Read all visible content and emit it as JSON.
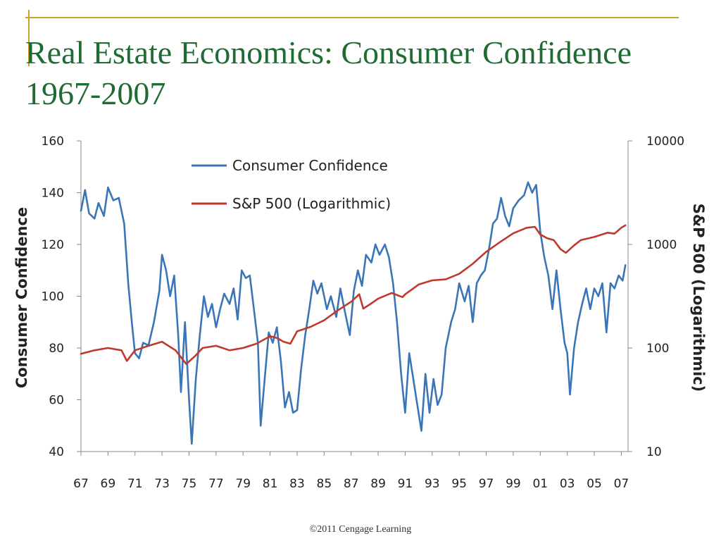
{
  "slide": {
    "title": "Real Estate Economics: Consumer Confidence 1967-2007",
    "footer": "©2011 Cengage Learning",
    "title_color": "#1f6b34",
    "accent_color": "#c9a227"
  },
  "chart_data": {
    "type": "line",
    "ylabel": "Consumer Confidence",
    "y2label": "S&P 500 (Logarithmic)",
    "ylim": [
      40,
      160
    ],
    "yticks": [
      40,
      60,
      80,
      100,
      120,
      140,
      160
    ],
    "y2lim": [
      10,
      10000
    ],
    "y2scale": "log",
    "y2ticks": [
      10,
      100,
      1000,
      10000
    ],
    "xlim": [
      1967,
      2007.5
    ],
    "xticks": [
      1967,
      1969,
      1971,
      1973,
      1975,
      1977,
      1979,
      1981,
      1983,
      1985,
      1987,
      1989,
      1991,
      1993,
      1995,
      1997,
      1999,
      2001,
      2003,
      2005,
      2007
    ],
    "xticklabels": [
      "67",
      "69",
      "71",
      "73",
      "75",
      "77",
      "79",
      "81",
      "83",
      "85",
      "87",
      "89",
      "91",
      "93",
      "95",
      "97",
      "99",
      "01",
      "03",
      "05",
      "07"
    ],
    "grid": false,
    "legend_position": "top-left",
    "series": [
      {
        "name": "Consumer Confidence",
        "axis": "left",
        "color": "#3a75b8",
        "points": [
          [
            1967.0,
            133
          ],
          [
            1967.3,
            141
          ],
          [
            1967.6,
            132
          ],
          [
            1968.0,
            130
          ],
          [
            1968.3,
            136
          ],
          [
            1968.7,
            131
          ],
          [
            1969.0,
            142
          ],
          [
            1969.4,
            137
          ],
          [
            1969.8,
            138
          ],
          [
            1970.2,
            128
          ],
          [
            1970.5,
            105
          ],
          [
            1970.8,
            88
          ],
          [
            1971.0,
            78
          ],
          [
            1971.3,
            76
          ],
          [
            1971.6,
            82
          ],
          [
            1972.0,
            81
          ],
          [
            1972.4,
            90
          ],
          [
            1972.8,
            102
          ],
          [
            1973.0,
            116
          ],
          [
            1973.3,
            110
          ],
          [
            1973.6,
            100
          ],
          [
            1973.9,
            108
          ],
          [
            1974.2,
            85
          ],
          [
            1974.4,
            63
          ],
          [
            1974.7,
            90
          ],
          [
            1975.0,
            60
          ],
          [
            1975.2,
            43
          ],
          [
            1975.5,
            68
          ],
          [
            1975.8,
            85
          ],
          [
            1976.1,
            100
          ],
          [
            1976.4,
            92
          ],
          [
            1976.7,
            97
          ],
          [
            1977.0,
            88
          ],
          [
            1977.3,
            95
          ],
          [
            1977.6,
            101
          ],
          [
            1978.0,
            97
          ],
          [
            1978.3,
            103
          ],
          [
            1978.6,
            91
          ],
          [
            1978.9,
            110
          ],
          [
            1979.2,
            107
          ],
          [
            1979.5,
            108
          ],
          [
            1979.8,
            95
          ],
          [
            1980.1,
            82
          ],
          [
            1980.3,
            50
          ],
          [
            1980.6,
            68
          ],
          [
            1980.9,
            86
          ],
          [
            1981.2,
            82
          ],
          [
            1981.5,
            88
          ],
          [
            1981.8,
            75
          ],
          [
            1982.1,
            57
          ],
          [
            1982.4,
            63
          ],
          [
            1982.7,
            55
          ],
          [
            1983.0,
            56
          ],
          [
            1983.3,
            72
          ],
          [
            1983.6,
            85
          ],
          [
            1983.9,
            95
          ],
          [
            1984.2,
            106
          ],
          [
            1984.5,
            101
          ],
          [
            1984.8,
            105
          ],
          [
            1985.2,
            95
          ],
          [
            1985.5,
            100
          ],
          [
            1985.9,
            92
          ],
          [
            1986.2,
            103
          ],
          [
            1986.5,
            95
          ],
          [
            1986.9,
            85
          ],
          [
            1987.2,
            102
          ],
          [
            1987.5,
            110
          ],
          [
            1987.8,
            104
          ],
          [
            1988.1,
            116
          ],
          [
            1988.5,
            113
          ],
          [
            1988.8,
            120
          ],
          [
            1989.1,
            116
          ],
          [
            1989.5,
            120
          ],
          [
            1989.8,
            115
          ],
          [
            1990.1,
            105
          ],
          [
            1990.4,
            90
          ],
          [
            1990.7,
            70
          ],
          [
            1991.0,
            55
          ],
          [
            1991.3,
            78
          ],
          [
            1991.6,
            68
          ],
          [
            1991.9,
            58
          ],
          [
            1992.2,
            48
          ],
          [
            1992.5,
            70
          ],
          [
            1992.8,
            55
          ],
          [
            1993.1,
            68
          ],
          [
            1993.4,
            58
          ],
          [
            1993.7,
            62
          ],
          [
            1994.0,
            80
          ],
          [
            1994.4,
            90
          ],
          [
            1994.7,
            95
          ],
          [
            1995.0,
            105
          ],
          [
            1995.4,
            98
          ],
          [
            1995.7,
            104
          ],
          [
            1996.0,
            90
          ],
          [
            1996.3,
            105
          ],
          [
            1996.6,
            108
          ],
          [
            1996.9,
            110
          ],
          [
            1997.2,
            118
          ],
          [
            1997.5,
            128
          ],
          [
            1997.8,
            130
          ],
          [
            1998.1,
            138
          ],
          [
            1998.4,
            131
          ],
          [
            1998.7,
            127
          ],
          [
            1999.0,
            134
          ],
          [
            1999.4,
            137
          ],
          [
            1999.8,
            139
          ],
          [
            2000.1,
            144
          ],
          [
            2000.4,
            140
          ],
          [
            2000.7,
            143
          ],
          [
            2001.0,
            125
          ],
          [
            2001.3,
            115
          ],
          [
            2001.6,
            108
          ],
          [
            2001.9,
            95
          ],
          [
            2002.2,
            110
          ],
          [
            2002.5,
            95
          ],
          [
            2002.8,
            82
          ],
          [
            2003.0,
            78
          ],
          [
            2003.2,
            62
          ],
          [
            2003.5,
            80
          ],
          [
            2003.8,
            90
          ],
          [
            2004.1,
            97
          ],
          [
            2004.4,
            103
          ],
          [
            2004.7,
            95
          ],
          [
            2005.0,
            103
          ],
          [
            2005.3,
            100
          ],
          [
            2005.6,
            105
          ],
          [
            2005.9,
            86
          ],
          [
            2006.2,
            105
          ],
          [
            2006.5,
            103
          ],
          [
            2006.8,
            108
          ],
          [
            2007.1,
            106
          ],
          [
            2007.3,
            112
          ]
        ]
      },
      {
        "name": "S&P 500 (Logarithmic)",
        "axis": "right",
        "color": "#c0392b",
        "points": [
          [
            1967.0,
            88
          ],
          [
            1968.0,
            95
          ],
          [
            1969.0,
            100
          ],
          [
            1970.0,
            95
          ],
          [
            1970.4,
            75
          ],
          [
            1971.0,
            95
          ],
          [
            1972.0,
            105
          ],
          [
            1973.0,
            115
          ],
          [
            1974.0,
            95
          ],
          [
            1974.8,
            70
          ],
          [
            1975.5,
            85
          ],
          [
            1976.0,
            100
          ],
          [
            1977.0,
            105
          ],
          [
            1978.0,
            95
          ],
          [
            1979.0,
            100
          ],
          [
            1980.0,
            110
          ],
          [
            1981.0,
            130
          ],
          [
            1981.5,
            125
          ],
          [
            1982.0,
            115
          ],
          [
            1982.5,
            110
          ],
          [
            1983.0,
            145
          ],
          [
            1984.0,
            160
          ],
          [
            1985.0,
            185
          ],
          [
            1986.0,
            230
          ],
          [
            1987.0,
            280
          ],
          [
            1987.6,
            330
          ],
          [
            1987.9,
            240
          ],
          [
            1988.5,
            270
          ],
          [
            1989.0,
            300
          ],
          [
            1990.0,
            340
          ],
          [
            1990.8,
            310
          ],
          [
            1991.0,
            330
          ],
          [
            1992.0,
            410
          ],
          [
            1993.0,
            450
          ],
          [
            1994.0,
            460
          ],
          [
            1995.0,
            520
          ],
          [
            1996.0,
            650
          ],
          [
            1997.0,
            850
          ],
          [
            1998.0,
            1050
          ],
          [
            1999.0,
            1280
          ],
          [
            2000.0,
            1450
          ],
          [
            2000.6,
            1480
          ],
          [
            2001.0,
            1250
          ],
          [
            2001.5,
            1150
          ],
          [
            2002.0,
            1100
          ],
          [
            2002.5,
            900
          ],
          [
            2002.9,
            830
          ],
          [
            2003.5,
            980
          ],
          [
            2004.0,
            1100
          ],
          [
            2005.0,
            1180
          ],
          [
            2006.0,
            1300
          ],
          [
            2006.5,
            1270
          ],
          [
            2007.0,
            1450
          ],
          [
            2007.3,
            1530
          ]
        ]
      }
    ]
  }
}
